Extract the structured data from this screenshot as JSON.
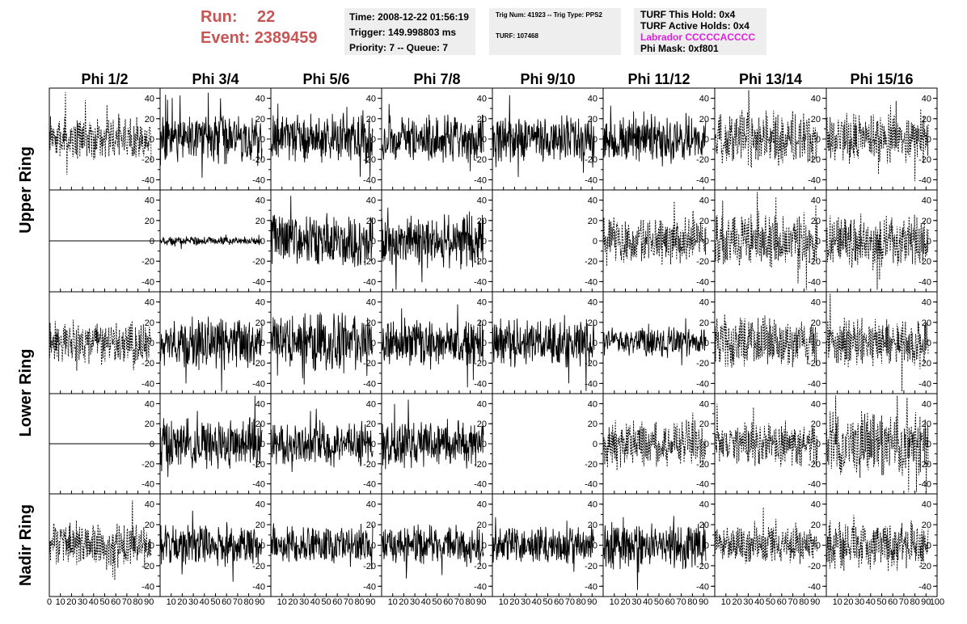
{
  "header": {
    "run_label": "Run:",
    "run_value": "22",
    "event_label": "Event:",
    "event_value": "2389459",
    "time_line": "Time: 2008-12-22 01:56:19",
    "trigger_line": "Trigger: 149.998803 ms",
    "priority_line": "Priority: 7 -- Queue: 7",
    "trig_num_line": "Trig Num: 41923 -- Trig Type: PPS2",
    "turf_line": "TURF: 107468",
    "turf_hold_line": "TURF This Hold: 0x4",
    "turf_active_line": "TURF Active Holds: 0x4",
    "labrador_line": "Labrador CCCCCACCCC",
    "phi_mask_line": "Phi Mask: 0xf801"
  },
  "chart_data": {
    "type": "line",
    "columns": [
      "Phi 1/2",
      "Phi 3/4",
      "Phi 5/6",
      "Phi 7/8",
      "Phi 9/10",
      "Phi 11/12",
      "Phi 13/14",
      "Phi 15/16"
    ],
    "ring_labels": [
      {
        "label": "Upper Ring",
        "rows": [
          0,
          1
        ]
      },
      {
        "label": "Lower Ring",
        "rows": [
          2,
          3
        ]
      },
      {
        "label": "Nadir Ring",
        "rows": [
          4
        ]
      }
    ],
    "xlim": [
      0,
      100
    ],
    "ylim": [
      -50,
      50
    ],
    "x_ticks": [
      0,
      10,
      20,
      30,
      40,
      50,
      60,
      70,
      80,
      90,
      100
    ],
    "y_ticks": [
      -40,
      -20,
      0,
      20,
      40
    ],
    "panels": [
      [
        {
          "style": "dashed",
          "amplitude": 14
        },
        {
          "style": "solid",
          "amplitude": 16
        },
        {
          "style": "solid",
          "amplitude": 16
        },
        {
          "style": "solid",
          "amplitude": 15
        },
        {
          "style": "solid",
          "amplitude": 15
        },
        {
          "style": "solid",
          "amplitude": 15
        },
        {
          "style": "dashed",
          "amplitude": 18
        },
        {
          "style": "dashed",
          "amplitude": 16
        }
      ],
      [
        {
          "style": "flat",
          "amplitude": 0
        },
        {
          "style": "solid",
          "amplitude": 3
        },
        {
          "style": "solid",
          "amplitude": 18
        },
        {
          "style": "solid",
          "amplitude": 18
        },
        {
          "style": "none",
          "amplitude": 0
        },
        {
          "style": "dashed",
          "amplitude": 15
        },
        {
          "style": "dashed",
          "amplitude": 18
        },
        {
          "style": "dashed",
          "amplitude": 18
        }
      ],
      [
        {
          "style": "dashed",
          "amplitude": 14
        },
        {
          "style": "solid",
          "amplitude": 17
        },
        {
          "style": "solid",
          "amplitude": 19
        },
        {
          "style": "solid",
          "amplitude": 15
        },
        {
          "style": "solid",
          "amplitude": 16
        },
        {
          "style": "solid",
          "amplitude": 10
        },
        {
          "style": "dashed",
          "amplitude": 17
        },
        {
          "style": "dashed",
          "amplitude": 17
        }
      ],
      [
        {
          "style": "flat",
          "amplitude": 0
        },
        {
          "style": "solid",
          "amplitude": 17
        },
        {
          "style": "solid",
          "amplitude": 15
        },
        {
          "style": "solid",
          "amplitude": 16
        },
        {
          "style": "none",
          "amplitude": 0
        },
        {
          "style": "dashed",
          "amplitude": 16
        },
        {
          "style": "dashed",
          "amplitude": 15
        },
        {
          "style": "dashed",
          "amplitude": 22
        }
      ],
      [
        {
          "style": "dashed",
          "amplitude": 15
        },
        {
          "style": "solid",
          "amplitude": 13
        },
        {
          "style": "solid",
          "amplitude": 13
        },
        {
          "style": "solid",
          "amplitude": 13
        },
        {
          "style": "solid",
          "amplitude": 12
        },
        {
          "style": "solid",
          "amplitude": 15
        },
        {
          "style": "dashed",
          "amplitude": 13
        },
        {
          "style": "dashed",
          "amplitude": 16
        }
      ]
    ]
  }
}
